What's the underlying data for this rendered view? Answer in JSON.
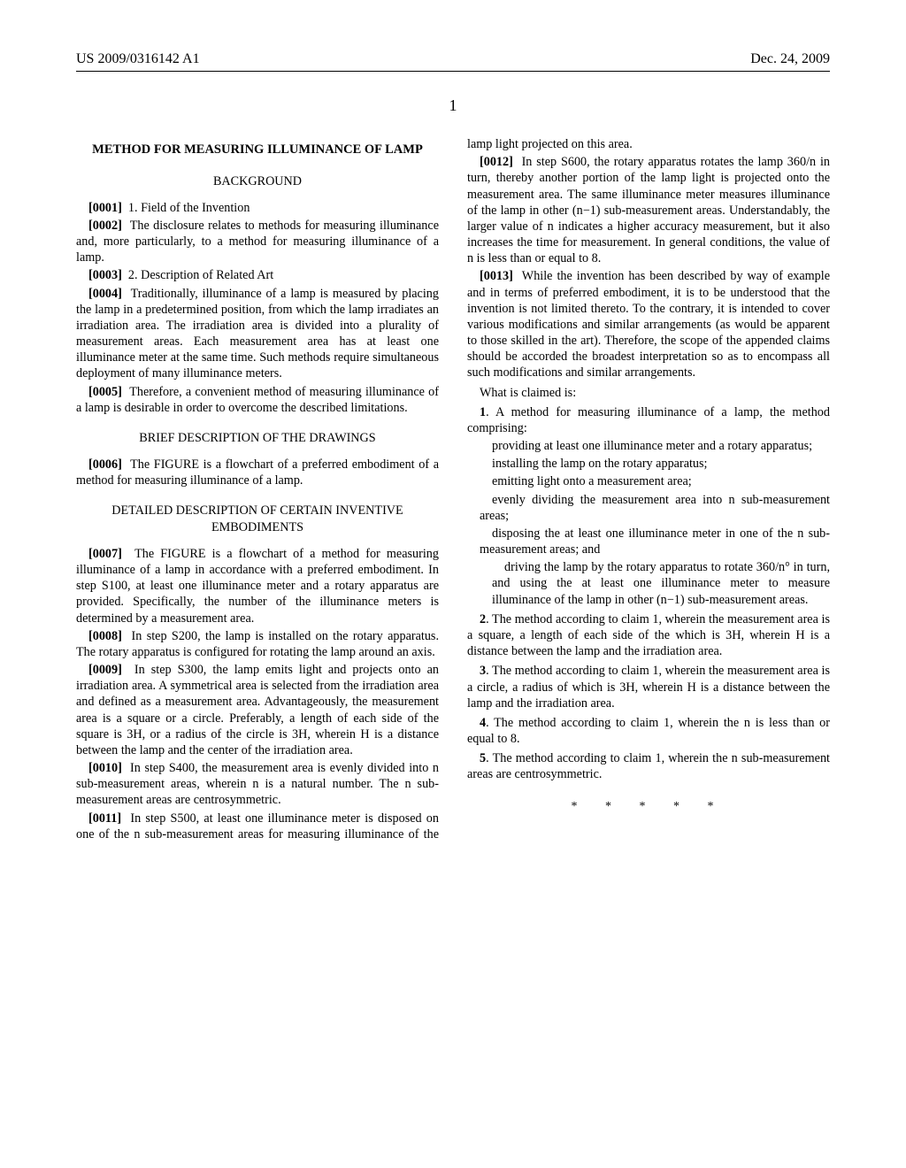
{
  "header": {
    "pubnum": "US 2009/0316142 A1",
    "date": "Dec. 24, 2009",
    "pagenum": "1"
  },
  "title": "METHOD FOR MEASURING ILLUMINANCE OF LAMP",
  "sections": {
    "background": "BACKGROUND",
    "drawings": "BRIEF DESCRIPTION OF THE DRAWINGS",
    "detailed": "DETAILED DESCRIPTION OF CERTAIN INVENTIVE EMBODIMENTS"
  },
  "paras": {
    "p0001_num": "[0001]",
    "p0001": "1. Field of the Invention",
    "p0002_num": "[0002]",
    "p0002": "The disclosure relates to methods for measuring illuminance and, more particularly, to a method for measuring illuminance of a lamp.",
    "p0003_num": "[0003]",
    "p0003": "2. Description of Related Art",
    "p0004_num": "[0004]",
    "p0004": "Traditionally, illuminance of a lamp is measured by placing the lamp in a predetermined position, from which the lamp irradiates an irradiation area. The irradiation area is divided into a plurality of measurement areas. Each measurement area has at least one illuminance meter at the same time. Such methods require simultaneous deployment of many illuminance meters.",
    "p0005_num": "[0005]",
    "p0005": "Therefore, a convenient method of measuring illuminance of a lamp is desirable in order to overcome the described limitations.",
    "p0006_num": "[0006]",
    "p0006": "The FIGURE is a flowchart of a preferred embodiment of a method for measuring illuminance of a lamp.",
    "p0007_num": "[0007]",
    "p0007": "The FIGURE is a flowchart of a method for measuring illuminance of a lamp in accordance with a preferred embodiment. In step S100, at least one illuminance meter and a rotary apparatus are provided. Specifically, the number of the illuminance meters is determined by a measurement area.",
    "p0008_num": "[0008]",
    "p0008": "In step S200, the lamp is installed on the rotary apparatus. The rotary apparatus is configured for rotating the lamp around an axis.",
    "p0009_num": "[0009]",
    "p0009": "In step S300, the lamp emits light and projects onto an irradiation area. A symmetrical area is selected from the irradiation area and defined as a measurement area. Advantageously, the measurement area is a square or a circle. Preferably, a length of each side of the square is 3H, or a radius of the circle is 3H, wherein H is a distance between the lamp and the center of the irradiation area.",
    "p0010_num": "[0010]",
    "p0010": "In step S400, the measurement area is evenly divided into n sub-measurement areas, wherein n is a natural number. The n sub-measurement areas are centrosymmetric.",
    "p0011_num": "[0011]",
    "p0011": "In step S500, at least one illuminance meter is disposed on one of the n sub-measurement areas for measuring illuminance of the lamp light projected on this area.",
    "p0012_num": "[0012]",
    "p0012": "In step S600, the rotary apparatus rotates the lamp 360/n in turn, thereby another portion of the lamp light is projected onto the measurement area. The same illuminance meter measures illuminance of the lamp in other (n−1) sub-measurement areas. Understandably, the larger value of n indicates a higher accuracy measurement, but it also increases the time for measurement. In general conditions, the value of n is less than or equal to 8.",
    "p0013_num": "[0013]",
    "p0013": "While the invention has been described by way of example and in terms of preferred embodiment, it is to be understood that the invention is not limited thereto. To the contrary, it is intended to cover various modifications and similar arrangements (as would be apparent to those skilled in the art). Therefore, the scope of the appended claims should be accorded the broadest interpretation so as to encompass all such modifications and similar arrangements."
  },
  "claims": {
    "intro": "What is claimed is:",
    "c1_lead": "1. A method for measuring illuminance of a lamp, the method comprising:",
    "c1_s1": "providing at least one illuminance meter and a rotary apparatus;",
    "c1_s2": "installing the lamp on the rotary apparatus;",
    "c1_s3": "emitting light onto a measurement area;",
    "c1_s4": "evenly dividing the measurement area into n sub-measurement areas;",
    "c1_s5": "disposing the at least one illuminance meter in one of the n sub-measurement areas; and",
    "c1_s6": "driving the lamp by the rotary apparatus to rotate 360/n° in turn, and using the at least one illuminance meter to measure illuminance of the lamp in other (n−1) sub-measurement areas.",
    "c2": "2. The method according to claim 1, wherein the measurement area is a square, a length of each side of the which is 3H, wherein H is a distance between the lamp and the irradiation area.",
    "c3": "3. The method according to claim 1, wherein the measurement area is a circle, a radius of which is 3H, wherein H is a distance between the lamp and the irradiation area.",
    "c4": "4. The method according to claim 1, wherein the n is less than or equal to 8.",
    "c5": "5. The method according to claim 1, wherein the n sub-measurement areas are centrosymmetric."
  },
  "stars": "*   *   *   *   *"
}
